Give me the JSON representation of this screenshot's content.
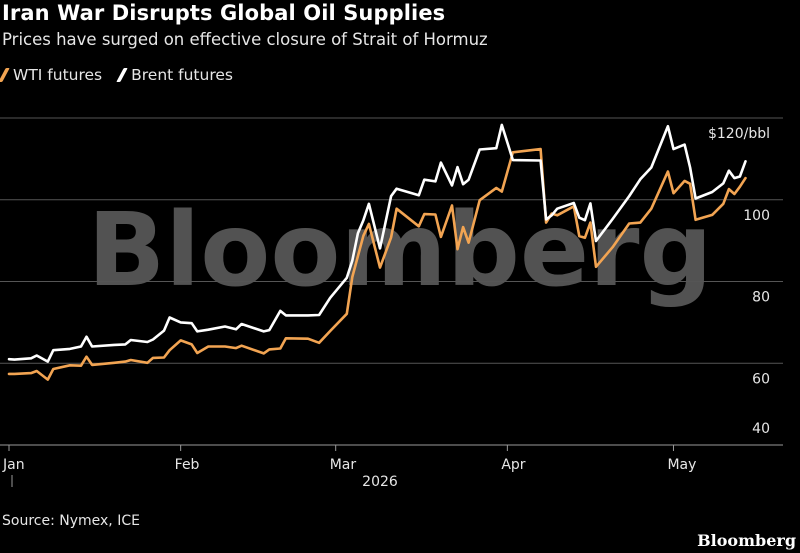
{
  "colors": {
    "wti": "#f2a452",
    "brent": "#ffffff",
    "grid": "#555555",
    "background": "#000000"
  },
  "header": {
    "title": "Iran War Disrupts Global Oil Supplies",
    "subtitle": "Prices have surged on effective closure of Strait of Hormuz"
  },
  "footer": {
    "source": "Source: Nymex, ICE",
    "brand": "Bloomberg"
  },
  "watermark": "Bloomberg",
  "chart_data": {
    "type": "line",
    "title": "Iran War Disrupts Global Oil Supplies",
    "subtitle": "Prices have surged on effective closure of Strait of Hormuz",
    "xlabel": "2026",
    "ylabel": "",
    "x_tick_labels": [
      "Jan",
      "Feb",
      "Mar",
      "Apr",
      "May"
    ],
    "x_tick_dates": [
      "2026-01-01",
      "2026-02-01",
      "2026-03-01",
      "2026-04-01",
      "2026-05-01"
    ],
    "y_ticks": [
      40,
      60,
      80,
      100,
      120
    ],
    "y_tick_labels": [
      "40",
      "60",
      "80",
      "100",
      "$120/bbl"
    ],
    "xlim": [
      "2026-01-01",
      "2026-05-15"
    ],
    "ylim": [
      40,
      120
    ],
    "grid": true,
    "legend_position": "top-left",
    "series": [
      {
        "name": "WTI futures",
        "color": "#f2a452",
        "points": [
          [
            "2026-01-01",
            57.4
          ],
          [
            "2026-01-02",
            57.4
          ],
          [
            "2026-01-05",
            57.6
          ],
          [
            "2026-01-06",
            58.1
          ],
          [
            "2026-01-08",
            56.0
          ],
          [
            "2026-01-09",
            58.6
          ],
          [
            "2026-01-12",
            59.5
          ],
          [
            "2026-01-14",
            59.4
          ],
          [
            "2026-01-15",
            61.6
          ],
          [
            "2026-01-16",
            59.6
          ],
          [
            "2026-01-20",
            60.1
          ],
          [
            "2026-01-22",
            60.4
          ],
          [
            "2026-01-23",
            60.8
          ],
          [
            "2026-01-26",
            60.1
          ],
          [
            "2026-01-27",
            61.3
          ],
          [
            "2026-01-29",
            61.4
          ],
          [
            "2026-01-30",
            63.2
          ],
          [
            "2026-02-01",
            65.6
          ],
          [
            "2026-02-03",
            64.6
          ],
          [
            "2026-02-04",
            62.5
          ],
          [
            "2026-02-06",
            64.1
          ],
          [
            "2026-02-09",
            64.1
          ],
          [
            "2026-02-11",
            63.7
          ],
          [
            "2026-02-12",
            64.3
          ],
          [
            "2026-02-16",
            62.4
          ],
          [
            "2026-02-17",
            63.4
          ],
          [
            "2026-02-19",
            63.6
          ],
          [
            "2026-02-20",
            66.1
          ],
          [
            "2026-02-24",
            66.0
          ],
          [
            "2026-02-26",
            65.0
          ],
          [
            "2026-02-28",
            67.9
          ],
          [
            "2026-03-03",
            72.1
          ],
          [
            "2026-03-04",
            81.1
          ],
          [
            "2026-03-05",
            86.2
          ],
          [
            "2026-03-06",
            91.2
          ],
          [
            "2026-03-07",
            94.1
          ],
          [
            "2026-03-09",
            83.4
          ],
          [
            "2026-03-11",
            90.8
          ],
          [
            "2026-03-12",
            97.8
          ],
          [
            "2026-03-16",
            93.5
          ],
          [
            "2026-03-17",
            96.5
          ],
          [
            "2026-03-19",
            96.4
          ],
          [
            "2026-03-20",
            90.9
          ],
          [
            "2026-03-22",
            98.6
          ],
          [
            "2026-03-23",
            87.9
          ],
          [
            "2026-03-24",
            93.3
          ],
          [
            "2026-03-25",
            89.5
          ],
          [
            "2026-03-27",
            99.9
          ],
          [
            "2026-03-30",
            102.9
          ],
          [
            "2026-03-31",
            102.0
          ],
          [
            "2026-04-02",
            111.6
          ],
          [
            "2026-04-07",
            112.4
          ],
          [
            "2026-04-08",
            94.4
          ],
          [
            "2026-04-09",
            96.6
          ],
          [
            "2026-04-10",
            96.2
          ],
          [
            "2026-04-13",
            98.4
          ],
          [
            "2026-04-14",
            91.1
          ],
          [
            "2026-04-15",
            90.7
          ],
          [
            "2026-04-16",
            94.4
          ],
          [
            "2026-04-17",
            83.6
          ],
          [
            "2026-04-20",
            88.4
          ],
          [
            "2026-04-23",
            94.2
          ],
          [
            "2026-04-25",
            94.4
          ],
          [
            "2026-04-27",
            97.8
          ],
          [
            "2026-04-30",
            106.9
          ],
          [
            "2026-05-01",
            101.6
          ],
          [
            "2026-05-03",
            104.6
          ],
          [
            "2026-05-04",
            103.9
          ],
          [
            "2026-05-05",
            95.1
          ],
          [
            "2026-05-08",
            96.3
          ],
          [
            "2026-05-10",
            99.0
          ],
          [
            "2026-05-11",
            102.6
          ],
          [
            "2026-05-12",
            101.4
          ],
          [
            "2026-05-13",
            103.2
          ],
          [
            "2026-05-14",
            105.3
          ]
        ]
      },
      {
        "name": "Brent futures",
        "color": "#ffffff",
        "points": [
          [
            "2026-01-01",
            61.0
          ],
          [
            "2026-01-02",
            60.9
          ],
          [
            "2026-01-05",
            61.2
          ],
          [
            "2026-01-06",
            61.9
          ],
          [
            "2026-01-08",
            60.4
          ],
          [
            "2026-01-09",
            63.2
          ],
          [
            "2026-01-12",
            63.5
          ],
          [
            "2026-01-14",
            64.1
          ],
          [
            "2026-01-15",
            66.5
          ],
          [
            "2026-01-16",
            64.1
          ],
          [
            "2026-01-20",
            64.5
          ],
          [
            "2026-01-22",
            64.6
          ],
          [
            "2026-01-23",
            65.7
          ],
          [
            "2026-01-26",
            65.2
          ],
          [
            "2026-01-27",
            65.8
          ],
          [
            "2026-01-29",
            68.0
          ],
          [
            "2026-01-30",
            71.2
          ],
          [
            "2026-02-01",
            70.0
          ],
          [
            "2026-02-03",
            69.8
          ],
          [
            "2026-02-04",
            67.8
          ],
          [
            "2026-02-06",
            68.2
          ],
          [
            "2026-02-09",
            69.0
          ],
          [
            "2026-02-11",
            68.3
          ],
          [
            "2026-02-12",
            69.6
          ],
          [
            "2026-02-16",
            67.8
          ],
          [
            "2026-02-17",
            68.1
          ],
          [
            "2026-02-19",
            72.8
          ],
          [
            "2026-02-20",
            71.7
          ],
          [
            "2026-02-24",
            71.7
          ],
          [
            "2026-02-26",
            71.8
          ],
          [
            "2026-02-28",
            76.0
          ],
          [
            "2026-03-03",
            80.9
          ],
          [
            "2026-03-04",
            85.1
          ],
          [
            "2026-03-05",
            91.8
          ],
          [
            "2026-03-06",
            95.0
          ],
          [
            "2026-03-07",
            99.0
          ],
          [
            "2026-03-09",
            88.1
          ],
          [
            "2026-03-11",
            100.9
          ],
          [
            "2026-03-12",
            102.7
          ],
          [
            "2026-03-16",
            101.1
          ],
          [
            "2026-03-17",
            104.9
          ],
          [
            "2026-03-19",
            104.5
          ],
          [
            "2026-03-20",
            109.1
          ],
          [
            "2026-03-22",
            103.5
          ],
          [
            "2026-03-23",
            108.0
          ],
          [
            "2026-03-24",
            103.8
          ],
          [
            "2026-03-25",
            104.9
          ],
          [
            "2026-03-27",
            112.3
          ],
          [
            "2026-03-30",
            112.6
          ],
          [
            "2026-03-31",
            118.3
          ],
          [
            "2026-04-02",
            109.7
          ],
          [
            "2026-04-07",
            109.6
          ],
          [
            "2026-04-08",
            95.2
          ],
          [
            "2026-04-09",
            96.2
          ],
          [
            "2026-04-10",
            97.8
          ],
          [
            "2026-04-13",
            99.2
          ],
          [
            "2026-04-14",
            95.6
          ],
          [
            "2026-04-15",
            95.0
          ],
          [
            "2026-04-16",
            99.1
          ],
          [
            "2026-04-17",
            89.9
          ],
          [
            "2026-04-20",
            95.3
          ],
          [
            "2026-04-23",
            100.9
          ],
          [
            "2026-04-25",
            105.0
          ],
          [
            "2026-04-27",
            107.9
          ],
          [
            "2026-04-30",
            118.0
          ],
          [
            "2026-05-01",
            112.4
          ],
          [
            "2026-05-03",
            113.5
          ],
          [
            "2026-05-04",
            107.9
          ],
          [
            "2026-05-05",
            100.3
          ],
          [
            "2026-05-08",
            101.9
          ],
          [
            "2026-05-10",
            104.0
          ],
          [
            "2026-05-11",
            107.1
          ],
          [
            "2026-05-12",
            105.3
          ],
          [
            "2026-05-13",
            105.7
          ],
          [
            "2026-05-14",
            109.4
          ]
        ]
      }
    ]
  }
}
